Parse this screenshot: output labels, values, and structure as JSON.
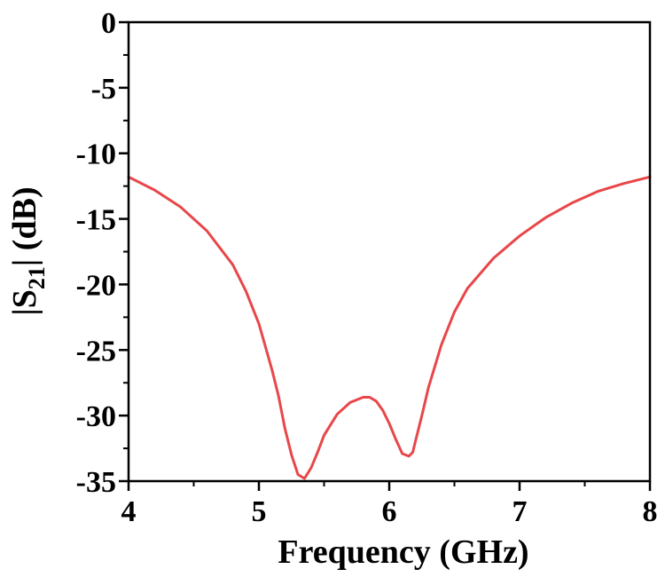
{
  "chart_data": {
    "type": "line",
    "xlabel": "Frequency (GHz)",
    "ylabel": {
      "prefix": "|S",
      "subscript": "21",
      "suffix": "| (dB)"
    },
    "xlim": [
      4,
      8
    ],
    "ylim": [
      -35,
      0
    ],
    "xticks": [
      4,
      5,
      6,
      7,
      8
    ],
    "yticks": [
      0,
      -5,
      -10,
      -15,
      -20,
      -25,
      -30,
      -35
    ],
    "x_minor_step": 0.5,
    "y_minor_step": 2.5,
    "grid": false,
    "series": [
      {
        "color": "#e8474a",
        "x": [
          4.0,
          4.2,
          4.4,
          4.6,
          4.8,
          4.9,
          5.0,
          5.1,
          5.15,
          5.2,
          5.25,
          5.3,
          5.35,
          5.4,
          5.45,
          5.5,
          5.6,
          5.7,
          5.8,
          5.85,
          5.9,
          5.95,
          6.0,
          6.05,
          6.1,
          6.15,
          6.18,
          6.2,
          6.25,
          6.3,
          6.4,
          6.5,
          6.6,
          6.8,
          7.0,
          7.2,
          7.4,
          7.6,
          7.8,
          8.0
        ],
        "y": [
          -11.8,
          -12.8,
          -14.1,
          -15.9,
          -18.5,
          -20.5,
          -23.0,
          -26.5,
          -28.5,
          -31.0,
          -33.0,
          -34.5,
          -34.8,
          -34.0,
          -32.8,
          -31.5,
          -29.9,
          -29.0,
          -28.6,
          -28.6,
          -28.9,
          -29.6,
          -30.6,
          -31.8,
          -32.9,
          -33.1,
          -32.8,
          -32.0,
          -30.0,
          -27.9,
          -24.6,
          -22.1,
          -20.3,
          -18.0,
          -16.3,
          -14.9,
          -13.8,
          -12.9,
          -12.3,
          -11.8
        ]
      }
    ]
  }
}
